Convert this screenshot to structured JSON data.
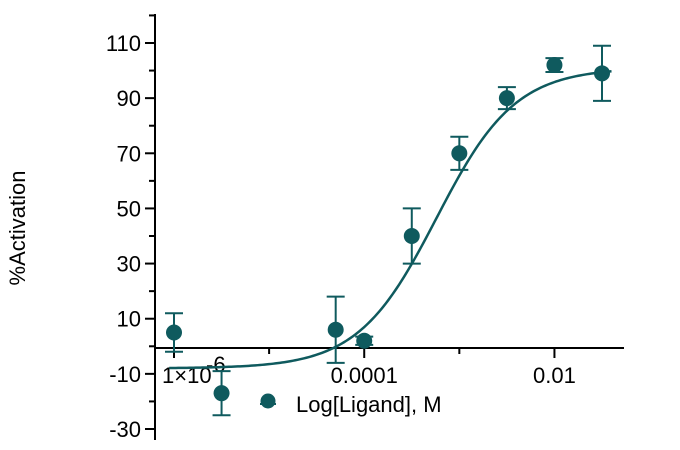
{
  "chart_data": {
    "type": "scatter",
    "title": "",
    "xlabel": "",
    "ylabel": "%Activation",
    "x_scale": "log10",
    "xlim_log": [
      -6.0,
      -1.35
    ],
    "ylim": [
      -34,
      118
    ],
    "grid": false,
    "y_ticks": [
      {
        "value": 110,
        "label": "110"
      },
      {
        "value": 90,
        "label": "90"
      },
      {
        "value": 70,
        "label": "70"
      },
      {
        "value": 50,
        "label": "50"
      },
      {
        "value": 30,
        "label": "30"
      },
      {
        "value": 10,
        "label": "10"
      },
      {
        "value": -10,
        "label": "-10"
      },
      {
        "value": -30,
        "label": "-30"
      }
    ],
    "x_ticks": [
      {
        "log": -6,
        "label": "1×10",
        "exp": "-6"
      },
      {
        "log": -4,
        "label": "0.0001",
        "exp": ""
      },
      {
        "log": -2,
        "label": "0.01",
        "exp": ""
      }
    ],
    "x_minor_ticks_log": [
      -5,
      -3
    ],
    "series": [
      {
        "name": "Log[Ligand],  M",
        "color": "#0f5a5e",
        "points": [
          {
            "log_x": -6.0,
            "y": 5,
            "err": 7
          },
          {
            "log_x": -5.5,
            "y": -17,
            "err": 8
          },
          {
            "log_x": -4.3,
            "y": 6,
            "err": 12
          },
          {
            "log_x": -4.0,
            "y": 2,
            "err": 1.5
          },
          {
            "log_x": -3.5,
            "y": 40,
            "err": 10
          },
          {
            "log_x": -3.0,
            "y": 70,
            "err": 6
          },
          {
            "log_x": -2.5,
            "y": 90,
            "err": 4
          },
          {
            "log_x": -2.0,
            "y": 102,
            "err": 2.5
          },
          {
            "log_x": -1.5,
            "y": 99,
            "err": 10
          }
        ],
        "fit": {
          "model": "sigmoid",
          "bottom": -8,
          "top": 101,
          "log_ec50": -3.24,
          "hill": 1.05
        }
      }
    ],
    "legend": {
      "position": "bottom-center",
      "label": "Log[Ligand],  M"
    }
  }
}
